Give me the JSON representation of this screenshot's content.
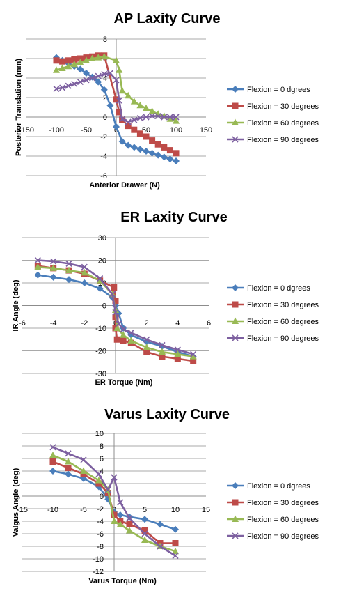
{
  "chart_data": [
    {
      "type": "line",
      "title": "AP Laxity Curve",
      "xlabel": "Anterior Drawer (N)",
      "ylabel": "Posterior Translation (mm)",
      "xlim": [
        -150,
        150
      ],
      "ylim": [
        -6,
        8
      ],
      "xticks": [
        -150,
        -100,
        -50,
        0,
        50,
        100,
        150
      ],
      "yticks": [
        -6,
        -4,
        -2,
        0,
        2,
        4,
        6,
        8
      ],
      "grid": "horizontal",
      "legend": "right",
      "series": [
        {
          "name": "Flexion = 0 dgrees",
          "color": "#4a7ebb",
          "marker": "diamond",
          "points": [
            [
              -100,
              6.1
            ],
            [
              -90,
              5.8
            ],
            [
              -80,
              5.5
            ],
            [
              -70,
              5.2
            ],
            [
              -60,
              4.9
            ],
            [
              -50,
              4.5
            ],
            [
              -40,
              4.1
            ],
            [
              -30,
              3.6
            ],
            [
              -20,
              2.8
            ],
            [
              -10,
              1.2
            ],
            [
              0,
              -1.0
            ],
            [
              10,
              -2.5
            ],
            [
              20,
              -2.9
            ],
            [
              30,
              -3.1
            ],
            [
              40,
              -3.3
            ],
            [
              50,
              -3.5
            ],
            [
              60,
              -3.7
            ],
            [
              70,
              -3.9
            ],
            [
              80,
              -4.1
            ],
            [
              90,
              -4.3
            ],
            [
              100,
              -4.5
            ]
          ]
        },
        {
          "name": "Flexion = 30 degrees",
          "color": "#be4b48",
          "marker": "square",
          "points": [
            [
              -100,
              5.8
            ],
            [
              -90,
              5.7
            ],
            [
              -80,
              5.8
            ],
            [
              -70,
              5.9
            ],
            [
              -60,
              6.0
            ],
            [
              -50,
              6.1
            ],
            [
              -40,
              6.2
            ],
            [
              -30,
              6.3
            ],
            [
              -20,
              6.3
            ],
            [
              0,
              1.8
            ],
            [
              5,
              0.5
            ],
            [
              10,
              -0.3
            ],
            [
              20,
              -0.9
            ],
            [
              30,
              -1.3
            ],
            [
              40,
              -1.7
            ],
            [
              50,
              -2.0
            ],
            [
              60,
              -2.4
            ],
            [
              70,
              -2.8
            ],
            [
              80,
              -3.1
            ],
            [
              90,
              -3.4
            ],
            [
              100,
              -3.7
            ]
          ]
        },
        {
          "name": "Flexion = 60 degrees",
          "color": "#98b954",
          "marker": "triangle",
          "points": [
            [
              -100,
              4.8
            ],
            [
              -90,
              5.0
            ],
            [
              -80,
              5.2
            ],
            [
              -70,
              5.4
            ],
            [
              -60,
              5.6
            ],
            [
              -50,
              5.8
            ],
            [
              -40,
              6.0
            ],
            [
              -30,
              6.1
            ],
            [
              -20,
              6.2
            ],
            [
              0,
              5.8
            ],
            [
              5,
              4.8
            ],
            [
              10,
              2.7
            ],
            [
              20,
              2.2
            ],
            [
              30,
              1.6
            ],
            [
              40,
              1.2
            ],
            [
              50,
              0.9
            ],
            [
              60,
              0.6
            ],
            [
              70,
              0.3
            ],
            [
              80,
              0.1
            ],
            [
              90,
              -0.2
            ],
            [
              100,
              -0.4
            ]
          ]
        },
        {
          "name": "Flexion = 90 degrees",
          "color": "#7d60a0",
          "marker": "x",
          "points": [
            [
              -100,
              2.9
            ],
            [
              -90,
              3.0
            ],
            [
              -80,
              3.2
            ],
            [
              -70,
              3.4
            ],
            [
              -60,
              3.6
            ],
            [
              -50,
              3.8
            ],
            [
              -40,
              4.0
            ],
            [
              -30,
              4.2
            ],
            [
              -20,
              4.4
            ],
            [
              -10,
              4.5
            ],
            [
              0,
              3.8
            ],
            [
              5,
              1.7
            ],
            [
              10,
              -0.2
            ],
            [
              20,
              -0.5
            ],
            [
              30,
              -0.3
            ],
            [
              40,
              -0.1
            ],
            [
              50,
              0.0
            ],
            [
              60,
              0.1
            ],
            [
              70,
              0.1
            ],
            [
              80,
              0.0
            ],
            [
              90,
              0.0
            ],
            [
              100,
              0.0
            ]
          ]
        }
      ]
    },
    {
      "type": "line",
      "title": "ER Laxity Curve",
      "xlabel": "ER Torque (Nm)",
      "ylabel": "IR Angle (deg)",
      "xlim": [
        -6,
        6
      ],
      "ylim": [
        -30,
        30
      ],
      "xticks": [
        -6,
        -4,
        -2,
        0,
        2,
        4,
        6
      ],
      "yticks": [
        -30,
        -20,
        -10,
        0,
        10,
        20,
        30
      ],
      "grid": "horizontal",
      "legend": "right",
      "series": [
        {
          "name": "Flexion = 0 dgrees",
          "color": "#4a7ebb",
          "marker": "diamond",
          "points": [
            [
              -5,
              13.5
            ],
            [
              -4,
              12.5
            ],
            [
              -3,
              11.5
            ],
            [
              -2,
              10.0
            ],
            [
              -1,
              7.5
            ],
            [
              -0.2,
              3.5
            ],
            [
              0,
              0.0
            ],
            [
              0.2,
              -3.5
            ],
            [
              0.5,
              -10.0
            ],
            [
              1,
              -13.0
            ],
            [
              2,
              -16.0
            ],
            [
              3,
              -18.0
            ],
            [
              4,
              -20.5
            ],
            [
              5,
              -22.5
            ]
          ]
        },
        {
          "name": "Flexion = 30 degrees",
          "color": "#be4b48",
          "marker": "square",
          "points": [
            [
              -5,
              17.5
            ],
            [
              -4,
              16.5
            ],
            [
              -3,
              15.5
            ],
            [
              -2,
              14.0
            ],
            [
              -1,
              11.0
            ],
            [
              -0.1,
              8.0
            ],
            [
              0,
              2.0
            ],
            [
              0,
              -5.0
            ],
            [
              0,
              -10.0
            ],
            [
              0.1,
              -15.0
            ],
            [
              0.5,
              -15.5
            ],
            [
              1,
              -16.5
            ],
            [
              2,
              -20.5
            ],
            [
              3,
              -22.5
            ],
            [
              4,
              -23.5
            ],
            [
              5,
              -24.5
            ]
          ]
        },
        {
          "name": "Flexion = 60 degrees",
          "color": "#98b954",
          "marker": "triangle",
          "points": [
            [
              -5,
              17.0
            ],
            [
              -4,
              16.5
            ],
            [
              -3,
              15.5
            ],
            [
              -2,
              14.5
            ],
            [
              -1,
              11.0
            ],
            [
              -0.2,
              5.0
            ],
            [
              0,
              -2.0
            ],
            [
              0.1,
              -10.0
            ],
            [
              0.5,
              -13.0
            ],
            [
              1,
              -15.5
            ],
            [
              2,
              -18.5
            ],
            [
              3,
              -20.5
            ],
            [
              4,
              -21.5
            ],
            [
              5,
              -22.5
            ]
          ]
        },
        {
          "name": "Flexion = 90 degrees",
          "color": "#7d60a0",
          "marker": "x",
          "points": [
            [
              -5,
              20.0
            ],
            [
              -4,
              19.5
            ],
            [
              -3,
              18.5
            ],
            [
              -2,
              17.0
            ],
            [
              -1,
              12.0
            ],
            [
              -0.2,
              5.0
            ],
            [
              0,
              -3.0
            ],
            [
              0.2,
              -8.0
            ],
            [
              0.5,
              -10.5
            ],
            [
              1,
              -12.0
            ],
            [
              2,
              -15.0
            ],
            [
              3,
              -17.5
            ],
            [
              4,
              -19.5
            ],
            [
              5,
              -21.5
            ]
          ]
        }
      ]
    },
    {
      "type": "line",
      "title": "Varus Laxity Curve",
      "xlabel": "Varus Torque (Nm)",
      "ylabel": "Valgus Angle (deg)",
      "xlim": [
        -15,
        15
      ],
      "ylim": [
        -12,
        10
      ],
      "xticks": [
        -15,
        -10,
        -5,
        0,
        5,
        10,
        15
      ],
      "yticks": [
        -12,
        -10,
        -8,
        -6,
        -4,
        -2,
        0,
        2,
        4,
        6,
        8,
        10
      ],
      "grid": "horizontal",
      "legend": "right",
      "series": [
        {
          "name": "Flexion = 0 dgrees",
          "color": "#4a7ebb",
          "marker": "diamond",
          "points": [
            [
              -10,
              4.0
            ],
            [
              -7.5,
              3.5
            ],
            [
              -5,
              2.8
            ],
            [
              -2.5,
              1.5
            ],
            [
              -1,
              -0.5
            ],
            [
              0,
              -2.5
            ],
            [
              1,
              -3.0
            ],
            [
              2.5,
              -3.3
            ],
            [
              5,
              -3.7
            ],
            [
              7.5,
              -4.5
            ],
            [
              10,
              -5.3
            ]
          ]
        },
        {
          "name": "Flexion = 30 degrees",
          "color": "#be4b48",
          "marker": "square",
          "points": [
            [
              -10,
              5.5
            ],
            [
              -7.5,
              4.5
            ],
            [
              -5,
              3.5
            ],
            [
              -2.5,
              2.0
            ],
            [
              -1,
              0.5
            ],
            [
              0,
              -3.0
            ],
            [
              1,
              -4.0
            ],
            [
              2.5,
              -4.5
            ],
            [
              5,
              -5.5
            ],
            [
              7.5,
              -7.5
            ],
            [
              10,
              -7.5
            ]
          ]
        },
        {
          "name": "Flexion = 60 degrees",
          "color": "#98b954",
          "marker": "triangle",
          "points": [
            [
              -10,
              6.5
            ],
            [
              -7.5,
              5.5
            ],
            [
              -5,
              4.0
            ],
            [
              -2.5,
              2.5
            ],
            [
              -1,
              1.0
            ],
            [
              0,
              -4.0
            ],
            [
              1,
              -4.5
            ],
            [
              2.5,
              -5.5
            ],
            [
              5,
              -7.0
            ],
            [
              7.5,
              -8.0
            ],
            [
              10,
              -8.8
            ]
          ]
        },
        {
          "name": "Flexion = 90 degrees",
          "color": "#7d60a0",
          "marker": "x",
          "points": [
            [
              -10,
              7.8
            ],
            [
              -7.5,
              6.8
            ],
            [
              -5,
              5.8
            ],
            [
              -2.5,
              3.5
            ],
            [
              -1,
              1.0
            ],
            [
              0,
              3.0
            ],
            [
              1,
              -1.0
            ],
            [
              2.5,
              -3.5
            ],
            [
              5,
              -6.0
            ],
            [
              7.5,
              -8.0
            ],
            [
              10,
              -9.5
            ]
          ]
        }
      ]
    }
  ]
}
